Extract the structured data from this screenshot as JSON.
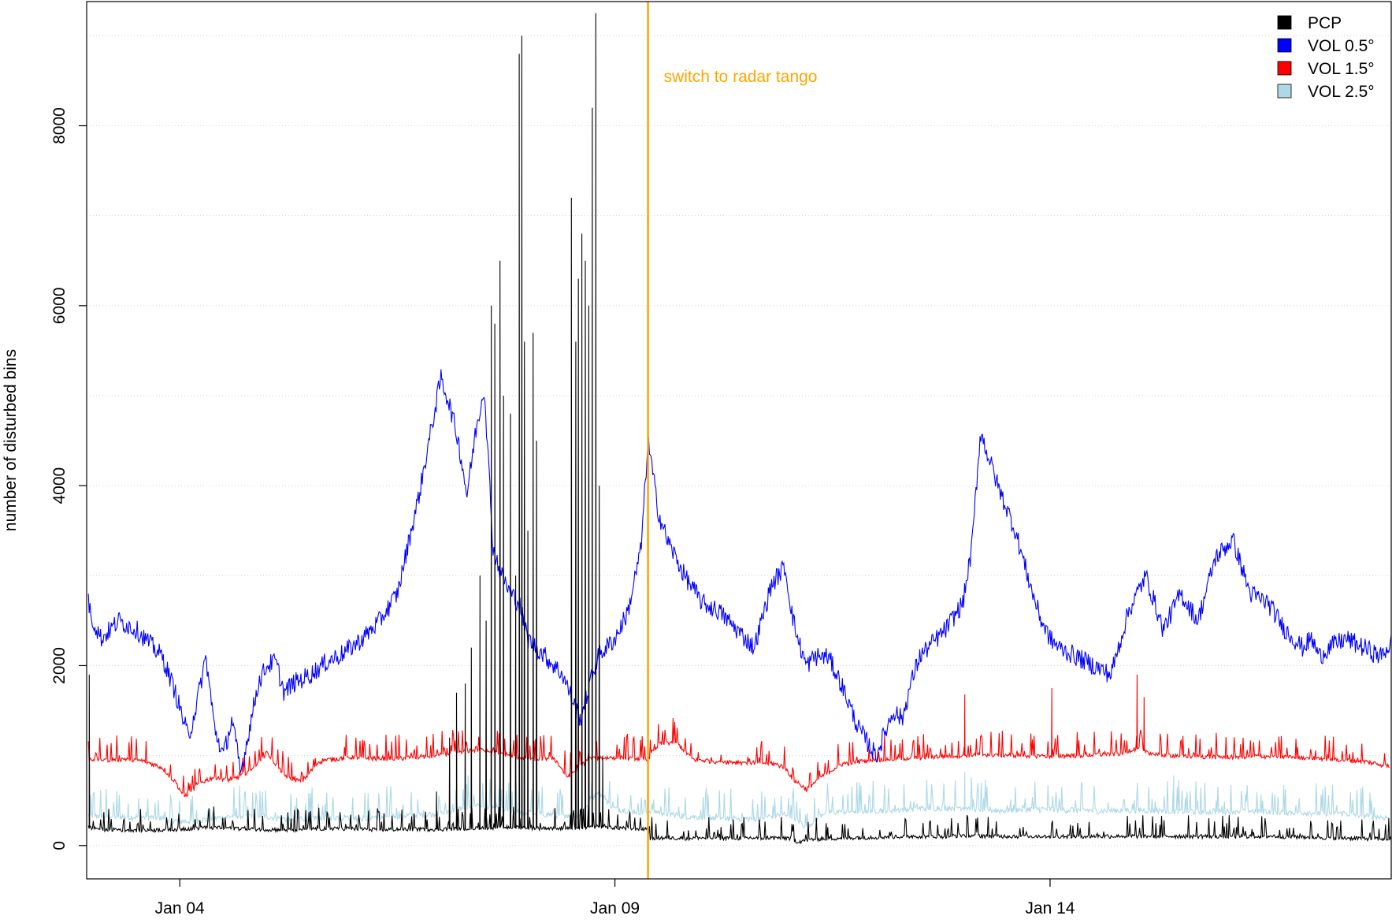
{
  "chart_data": {
    "type": "line",
    "title": "",
    "xlabel": "",
    "ylabel": "number of disturbed bins",
    "x_range_days": [
      2.93,
      17.92
    ],
    "xlim": [
      "Jan 03",
      "Jan 17"
    ],
    "ylim": [
      -370,
      9380
    ],
    "x_ticks": [
      {
        "day": 4,
        "label": "Jan 04"
      },
      {
        "day": 9,
        "label": "Jan 09"
      },
      {
        "day": 14,
        "label": "Jan 14"
      }
    ],
    "y_ticks": [
      {
        "value": 0,
        "label": "0"
      },
      {
        "value": 2000,
        "label": "2000"
      },
      {
        "value": 4000,
        "label": "4000"
      },
      {
        "value": 6000,
        "label": "6000"
      },
      {
        "value": 8000,
        "label": "8000"
      }
    ],
    "grid": "horizontal dotted, every 1000",
    "legend_position": "top-right",
    "legend": [
      {
        "label": "PCP",
        "color": "#000000"
      },
      {
        "label": "VOL 0.5°",
        "color": "#0000ff"
      },
      {
        "label": "VOL 1.5°",
        "color": "#ff0000"
      },
      {
        "label": "VOL 2.5°",
        "color": "#add8e6"
      }
    ],
    "annotation": {
      "day": 9.38,
      "text": "switch to radar tango",
      "color": "#ffa500"
    },
    "series": [
      {
        "name": "VOL 2.5°",
        "color": "#add8e6",
        "x": [
          2.95,
          3.2,
          3.5,
          3.8,
          4.0,
          4.3,
          4.6,
          4.9,
          5.2,
          5.5,
          5.8,
          6.1,
          6.4,
          6.7,
          7.0,
          7.2,
          7.4,
          7.6,
          7.8,
          8.0,
          8.2,
          8.4,
          8.6,
          8.8,
          9.0,
          9.2,
          9.38,
          9.4,
          9.8,
          10.2,
          10.6,
          11.0,
          11.2,
          11.4,
          11.8,
          12.2,
          12.6,
          13.0,
          13.4,
          13.8,
          14.2,
          14.6,
          15.0,
          15.4,
          15.8,
          16.2,
          16.6,
          17.0,
          17.4,
          17.9
        ],
        "y": [
          330,
          320,
          310,
          300,
          260,
          280,
          320,
          330,
          290,
          300,
          310,
          300,
          320,
          330,
          350,
          400,
          450,
          420,
          380,
          360,
          340,
          330,
          340,
          600,
          400,
          380,
          360,
          380,
          320,
          300,
          290,
          350,
          200,
          360,
          380,
          390,
          410,
          420,
          380,
          400,
          390,
          380,
          390,
          380,
          370,
          380,
          370,
          360,
          350,
          300
        ],
        "spike_amplitude": 220,
        "peaks": [
          {
            "x": 8.55,
            "y": 1300
          },
          {
            "x": 8.62,
            "y": 1100
          },
          {
            "x": 13.02,
            "y": 820
          },
          {
            "x": 15.42,
            "y": 780
          }
        ]
      },
      {
        "name": "VOL 1.5°",
        "color": "#ff0000",
        "x": [
          2.95,
          3.2,
          3.4,
          3.6,
          3.8,
          3.95,
          4.05,
          4.25,
          4.4,
          4.6,
          4.8,
          5.0,
          5.2,
          5.4,
          5.6,
          5.8,
          6.0,
          6.3,
          6.6,
          6.9,
          7.1,
          7.3,
          7.5,
          7.7,
          7.9,
          8.1,
          8.3,
          8.45,
          8.55,
          8.7,
          8.9,
          9.1,
          9.3,
          9.38,
          9.5,
          9.7,
          9.9,
          10.2,
          10.5,
          10.8,
          10.95,
          11.05,
          11.2,
          11.4,
          11.6,
          11.8,
          12.0,
          12.4,
          12.8,
          13.0,
          13.2,
          13.6,
          14.0,
          14.4,
          14.8,
          15.0,
          15.2,
          15.6,
          16.0,
          16.4,
          16.8,
          17.2,
          17.6,
          17.9
        ],
        "y": [
          960,
          950,
          960,
          930,
          860,
          700,
          540,
          700,
          760,
          720,
          830,
          1030,
          780,
          700,
          930,
          960,
          980,
          960,
          970,
          990,
          1020,
          1050,
          1060,
          1020,
          980,
          960,
          970,
          760,
          830,
          960,
          970,
          980,
          960,
          960,
          1120,
          1150,
          950,
          930,
          920,
          910,
          870,
          730,
          620,
          780,
          900,
          930,
          950,
          970,
          990,
          1000,
          1010,
          1000,
          990,
          1000,
          1020,
          1080,
          1010,
          990,
          980,
          990,
          980,
          960,
          930,
          880
        ],
        "spike_amplitude": 170,
        "peaks": [
          {
            "x": 8.55,
            "y": 1600
          },
          {
            "x": 8.62,
            "y": 1500
          },
          {
            "x": 13.02,
            "y": 1680
          },
          {
            "x": 14.02,
            "y": 1750
          },
          {
            "x": 15.0,
            "y": 1900
          },
          {
            "x": 15.08,
            "y": 1650
          }
        ]
      },
      {
        "name": "VOL 0.5°",
        "color": "#0000ff",
        "x": [
          2.95,
          3.0,
          3.1,
          3.3,
          3.5,
          3.7,
          3.8,
          3.95,
          4.1,
          4.2,
          4.3,
          4.4,
          4.5,
          4.6,
          4.7,
          4.8,
          4.9,
          5.0,
          5.1,
          5.2,
          5.3,
          5.5,
          5.7,
          5.9,
          6.1,
          6.3,
          6.5,
          6.75,
          7.0,
          7.1,
          7.2,
          7.3,
          7.4,
          7.5,
          7.6,
          7.7,
          7.8,
          7.9,
          8.0,
          8.2,
          8.4,
          8.6,
          8.8,
          9.0,
          9.15,
          9.3,
          9.38,
          9.5,
          9.6,
          9.8,
          10.0,
          10.2,
          10.4,
          10.6,
          10.8,
          10.95,
          11.05,
          11.1,
          11.2,
          11.3,
          11.45,
          11.6,
          11.8,
          12.0,
          12.2,
          12.3,
          12.4,
          12.5,
          12.6,
          12.8,
          13.0,
          13.1,
          13.2,
          13.4,
          13.6,
          13.8,
          13.9,
          14.0,
          14.1,
          14.3,
          14.5,
          14.7,
          14.9,
          15.1,
          15.3,
          15.5,
          15.7,
          15.9,
          16.1,
          16.3,
          16.5,
          16.7,
          16.9,
          17.0,
          17.1,
          17.2,
          17.4,
          17.6,
          17.8,
          17.92
        ],
        "y": [
          2700,
          2500,
          2300,
          2500,
          2400,
          2200,
          2100,
          1700,
          1200,
          1600,
          2100,
          1300,
          1000,
          1400,
          800,
          1300,
          1800,
          2000,
          2050,
          1700,
          1800,
          1900,
          2050,
          2150,
          2300,
          2500,
          2800,
          3900,
          5200,
          4900,
          4500,
          3900,
          4600,
          5100,
          3300,
          3000,
          2800,
          2700,
          2300,
          2100,
          1900,
          1400,
          2100,
          2300,
          2600,
          3300,
          4500,
          3700,
          3400,
          3000,
          2700,
          2600,
          2400,
          2200,
          2900,
          3100,
          2500,
          2300,
          2000,
          2100,
          2100,
          1800,
          1300,
          1000,
          1500,
          1400,
          1800,
          2100,
          2200,
          2400,
          2700,
          3300,
          4600,
          4000,
          3500,
          2800,
          2500,
          2300,
          2200,
          2100,
          2000,
          1900,
          2600,
          3000,
          2400,
          2800,
          2500,
          3200,
          3400,
          2800,
          2700,
          2400,
          2200,
          2300,
          2100,
          2200,
          2300,
          2200,
          2100,
          2250
        ]
      },
      {
        "name": "PCP",
        "color": "#000000",
        "x": [
          2.95,
          3.1,
          3.4,
          3.7,
          4.0,
          4.3,
          4.6,
          4.9,
          5.2,
          5.5,
          5.8,
          6.1,
          6.4,
          6.7,
          7.0,
          7.3,
          7.6,
          7.9,
          8.2,
          8.5,
          8.8,
          9.1,
          9.38,
          9.4,
          9.8,
          10.2,
          10.6,
          11.0,
          11.1,
          11.3,
          11.6,
          12.0,
          12.4,
          12.8,
          13.0,
          13.4,
          13.8,
          14.2,
          14.6,
          15.0,
          15.4,
          15.8,
          16.2,
          16.6,
          17.0,
          17.4,
          17.92
        ],
        "y": [
          200,
          180,
          170,
          170,
          180,
          200,
          190,
          180,
          170,
          180,
          190,
          180,
          175,
          180,
          180,
          190,
          200,
          200,
          190,
          190,
          210,
          190,
          180,
          80,
          80,
          80,
          80,
          80,
          40,
          70,
          80,
          90,
          100,
          100,
          110,
          100,
          100,
          100,
          100,
          100,
          100,
          100,
          100,
          100,
          90,
          80,
          70
        ],
        "spike_amplitude": 150,
        "peaks": [
          {
            "x": 2.96,
            "y": 1900
          },
          {
            "x": 6.95,
            "y": 600
          },
          {
            "x": 7.1,
            "y": 1200
          },
          {
            "x": 7.18,
            "y": 1700
          },
          {
            "x": 7.28,
            "y": 1800
          },
          {
            "x": 7.35,
            "y": 2200
          },
          {
            "x": 7.45,
            "y": 3000
          },
          {
            "x": 7.52,
            "y": 2500
          },
          {
            "x": 7.58,
            "y": 6000
          },
          {
            "x": 7.62,
            "y": 5800
          },
          {
            "x": 7.68,
            "y": 6500
          },
          {
            "x": 7.72,
            "y": 5000
          },
          {
            "x": 7.8,
            "y": 4800
          },
          {
            "x": 7.86,
            "y": 3000
          },
          {
            "x": 7.9,
            "y": 8800
          },
          {
            "x": 7.93,
            "y": 9000
          },
          {
            "x": 7.96,
            "y": 5600
          },
          {
            "x": 8.0,
            "y": 3500
          },
          {
            "x": 8.06,
            "y": 5700
          },
          {
            "x": 8.1,
            "y": 4500
          },
          {
            "x": 8.5,
            "y": 7200
          },
          {
            "x": 8.55,
            "y": 5600
          },
          {
            "x": 8.58,
            "y": 6300
          },
          {
            "x": 8.62,
            "y": 6800
          },
          {
            "x": 8.66,
            "y": 6500
          },
          {
            "x": 8.7,
            "y": 6000
          },
          {
            "x": 8.74,
            "y": 8200
          },
          {
            "x": 8.78,
            "y": 9250
          },
          {
            "x": 8.82,
            "y": 4000
          },
          {
            "x": 8.86,
            "y": 1000
          }
        ]
      }
    ]
  }
}
